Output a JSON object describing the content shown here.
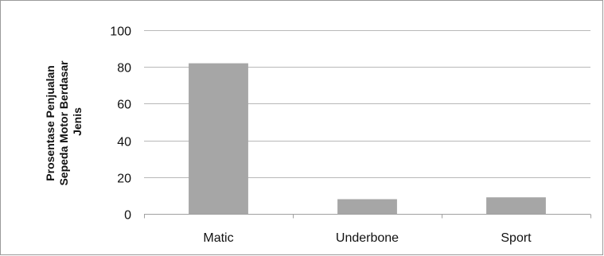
{
  "chart_data": {
    "type": "bar",
    "title": "",
    "xlabel": "",
    "ylabel_lines": [
      "Prosentase Penjualan",
      "Sepeda Motor Berdasar",
      "Jenis"
    ],
    "categories": [
      "Matic",
      "Underbone",
      "Sport"
    ],
    "values": [
      82,
      8,
      9
    ],
    "ylim": [
      0,
      100
    ],
    "yticks": [
      "0",
      "20",
      "40",
      "60",
      "80",
      "100"
    ],
    "grid": true,
    "legend": "none",
    "bar_color": "#a6a6a6",
    "grid_color": "#b8b8b8"
  }
}
